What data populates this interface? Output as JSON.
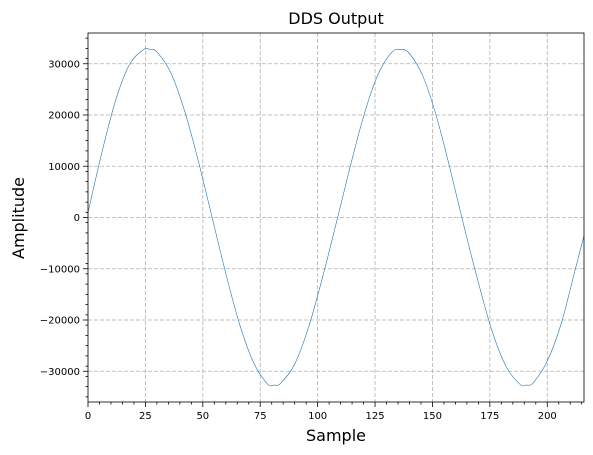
{
  "chart_data": {
    "type": "line",
    "title": "DDS Output",
    "xlabel": "Sample",
    "ylabel": "Amplitude",
    "xlim": [
      0,
      216
    ],
    "ylim": [
      -36000,
      36000
    ],
    "grid": true,
    "x_ticks": [
      0,
      25,
      50,
      75,
      100,
      125,
      150,
      175,
      200
    ],
    "x_tick_labels": [
      "0",
      "25",
      "50",
      "75",
      "100",
      "125",
      "150",
      "175",
      "200"
    ],
    "y_ticks": [
      30000,
      20000,
      10000,
      0,
      -10000,
      -20000,
      -30000
    ],
    "y_tick_labels": [
      "30000",
      "20000",
      "10000",
      "0",
      "−10000",
      "−20000",
      "−30000"
    ],
    "series": [
      {
        "color": "#1f77b4",
        "x": [
          0,
          6,
          12,
          18,
          24,
          27,
          30,
          36,
          42,
          48,
          54,
          60,
          66,
          72,
          78,
          81,
          84,
          90,
          96,
          102,
          108,
          114,
          120,
          126,
          132,
          136,
          140,
          146,
          152,
          158,
          164,
          170,
          176,
          182,
          188,
          191,
          194,
          200,
          206,
          212,
          216
        ],
        "y": [
          1000,
          12600,
          22800,
          29800,
          32700,
          32800,
          32300,
          28300,
          20900,
          11100,
          100,
          -10900,
          -20800,
          -28200,
          -32400,
          -32700,
          -32300,
          -28600,
          -21500,
          -11900,
          -1300,
          9600,
          19700,
          27600,
          32100,
          32800,
          32000,
          27400,
          19300,
          8900,
          -2200,
          -12700,
          -22200,
          -29000,
          -32500,
          -32700,
          -32200,
          -28000,
          -20800,
          -10500,
          -3500
        ]
      }
    ]
  }
}
